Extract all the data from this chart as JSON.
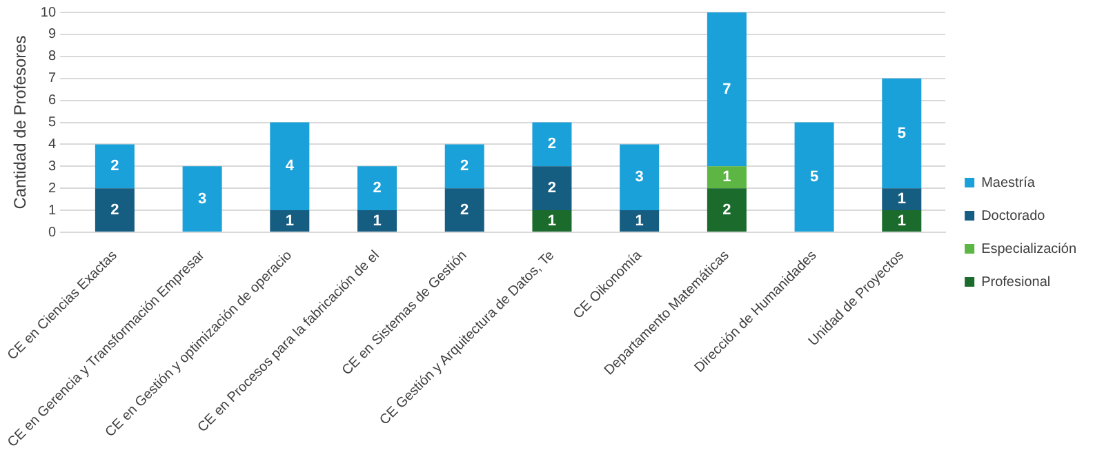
{
  "chart_data": {
    "type": "bar",
    "ylabel": "Cantidad de Profesores",
    "categories": [
      "CE en Ciencias Exactas",
      "CE en Gerencia y Transformación Empresar",
      "CE en Gestión y optimización de operacio",
      "CE en Procesos para la fabricación de el",
      "CE en Sistemas de Gestión",
      "CE Gestión y Arquitectura de Datos, Te",
      "CE Oikonomía",
      "Departamento Matemáticas",
      "Dirección de Humanidades",
      "Unidad de Proyectos"
    ],
    "series": [
      {
        "name": "Profesional",
        "color": "#1b6b2c",
        "values": [
          null,
          null,
          null,
          null,
          null,
          1,
          null,
          2,
          null,
          1
        ]
      },
      {
        "name": "Especialización",
        "color": "#5db544",
        "values": [
          null,
          null,
          null,
          null,
          null,
          null,
          null,
          1,
          null,
          null
        ]
      },
      {
        "name": "Doctorado",
        "color": "#155e82",
        "values": [
          2,
          null,
          1,
          1,
          2,
          2,
          1,
          null,
          null,
          1
        ]
      },
      {
        "name": "Maestría",
        "color": "#1ba1d9",
        "values": [
          2,
          3,
          4,
          2,
          2,
          2,
          3,
          7,
          5,
          5
        ]
      }
    ],
    "stacked": true,
    "data_labels": true,
    "ylim": [
      0,
      10
    ],
    "yticks": [
      0,
      1,
      2,
      3,
      4,
      5,
      6,
      7,
      8,
      9,
      10
    ],
    "grid": "y",
    "legend": "right"
  }
}
